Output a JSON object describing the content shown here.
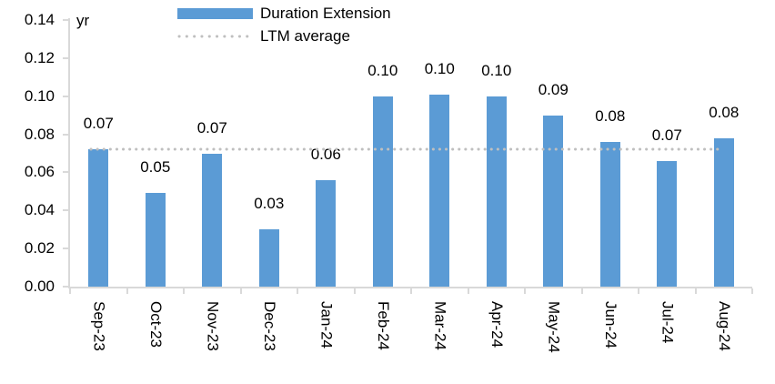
{
  "chart_data": {
    "type": "bar",
    "title": "",
    "unit_label": "yr",
    "categories": [
      "Sep-23",
      "Oct-23",
      "Nov-23",
      "Dec-23",
      "Jan-24",
      "Feb-24",
      "Mar-24",
      "Apr-24",
      "May-24",
      "Jun-24",
      "Jul-24",
      "Aug-24"
    ],
    "series": [
      {
        "name": "Duration Extension",
        "type": "bar",
        "color": "#5B9BD5",
        "values": [
          0.072,
          0.049,
          0.07,
          0.03,
          0.056,
          0.1,
          0.101,
          0.1,
          0.09,
          0.076,
          0.066,
          0.078
        ],
        "data_labels": [
          "0.07",
          "0.05",
          "0.07",
          "0.03",
          "0.06",
          "0.10",
          "0.10",
          "0.10",
          "0.09",
          "0.08",
          "0.07",
          "0.08"
        ]
      },
      {
        "name": "LTM average",
        "type": "line",
        "line_style": "dotted",
        "color": "#BFBFBF",
        "value": 0.072
      }
    ],
    "ylim": [
      0,
      0.14
    ],
    "yticks": [
      "0.00",
      "0.02",
      "0.04",
      "0.06",
      "0.08",
      "0.10",
      "0.12",
      "0.14"
    ],
    "grid": false,
    "legend_position": "top-center",
    "axis_color": "#D9D9D9",
    "text_color": "#000000",
    "background_color": "#FFFFFF"
  }
}
